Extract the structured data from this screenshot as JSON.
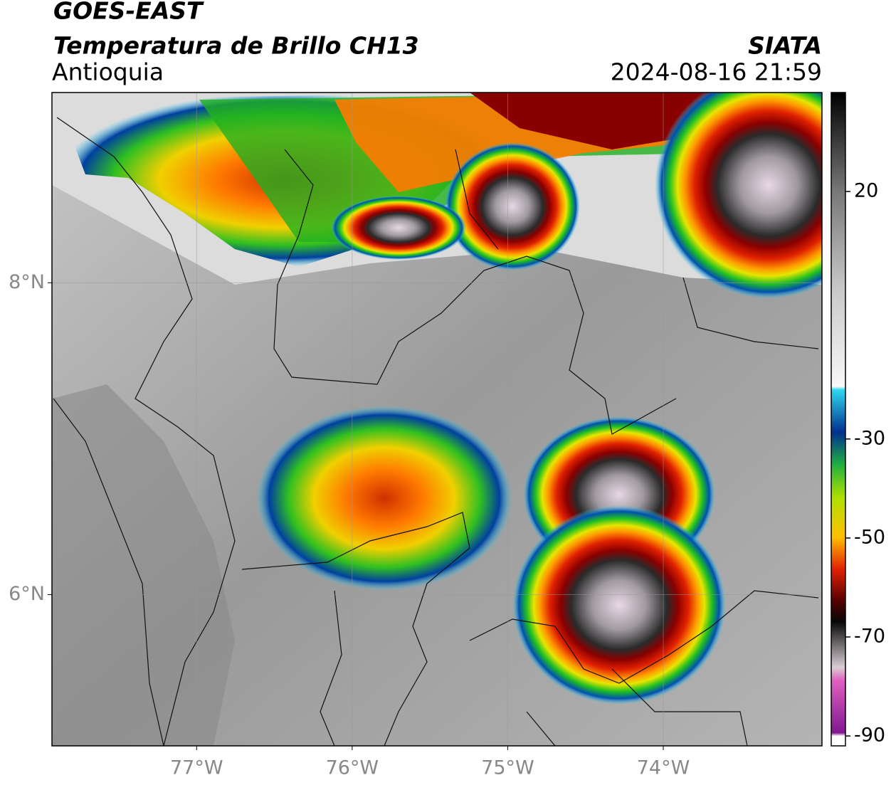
{
  "header": {
    "title": "GOES-EAST",
    "subtitle": "Temperatura de Brillo CH13",
    "region": "Antioquia",
    "source": "SIATA",
    "timestamp": "2024-08-16 21:59"
  },
  "map": {
    "xlim": [
      -77.93,
      -72.98
    ],
    "ylim": [
      5.03,
      9.22
    ],
    "xticks": [
      {
        "value": -77,
        "label": "77°W"
      },
      {
        "value": -76,
        "label": "76°W"
      },
      {
        "value": -75,
        "label": "75°W"
      },
      {
        "value": -74,
        "label": "74°W"
      }
    ],
    "yticks": [
      {
        "value": 8,
        "label": "8°N"
      },
      {
        "value": 6,
        "label": "6°N"
      }
    ],
    "grid": true
  },
  "colorbar": {
    "lim": [
      -92,
      40
    ],
    "ticks": [
      20,
      -30,
      -50,
      -70,
      -90
    ]
  }
}
